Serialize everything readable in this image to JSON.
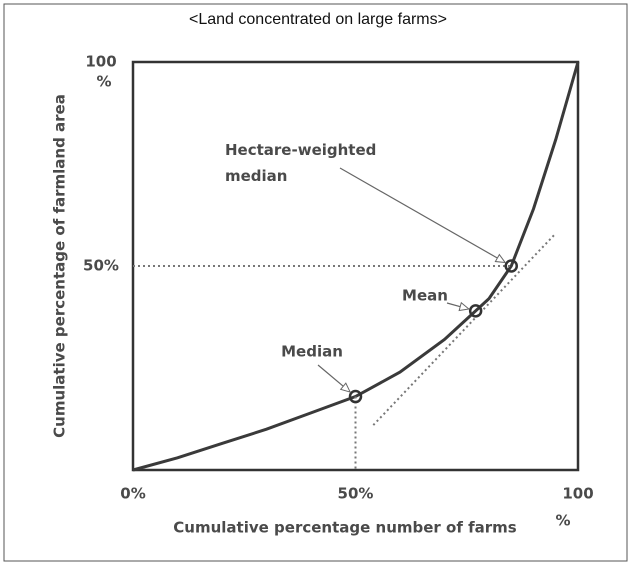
{
  "chart_data": {
    "type": "line",
    "title": "<Land concentrated on large farms>",
    "xlabel": "Cumulative percentage number of farms",
    "ylabel": "Cumulative percentage  of farmland area",
    "x_unit": "%",
    "y_unit": "%",
    "xlim": [
      0,
      100
    ],
    "ylim": [
      0,
      100
    ],
    "xticks": [
      {
        "value": 0,
        "label": "0%"
      },
      {
        "value": 50,
        "label": "50%"
      },
      {
        "value": 100,
        "label": "100"
      }
    ],
    "yticks": [
      {
        "value": 50,
        "label": "50%"
      },
      {
        "value": 100,
        "label": "100"
      }
    ],
    "series": [
      {
        "color": "#3a3a3a",
        "style": "solid",
        "x": [
          0,
          10,
          20,
          30,
          40,
          50,
          60,
          70,
          77,
          80,
          85,
          90,
          95,
          100
        ],
        "values": [
          0,
          3,
          6.5,
          10,
          14,
          18,
          24,
          32,
          39,
          42,
          50,
          64,
          81,
          100
        ]
      },
      {
        "color": "#777777",
        "style": "dotted",
        "x": [
          54,
          95
        ],
        "values": [
          11,
          58
        ]
      },
      {
        "color": "#777777",
        "style": "dotted",
        "x": [
          0,
          85
        ],
        "values": [
          50,
          50
        ]
      },
      {
        "color": "#777777",
        "style": "dotted",
        "x": [
          50,
          50
        ],
        "values": [
          18,
          0
        ]
      }
    ],
    "markers": {
      "x": [
        50,
        77,
        85
      ],
      "values": [
        18,
        39,
        50
      ]
    },
    "annotations": [
      "Median",
      "Mean",
      "Hectare-weighted median"
    ]
  }
}
